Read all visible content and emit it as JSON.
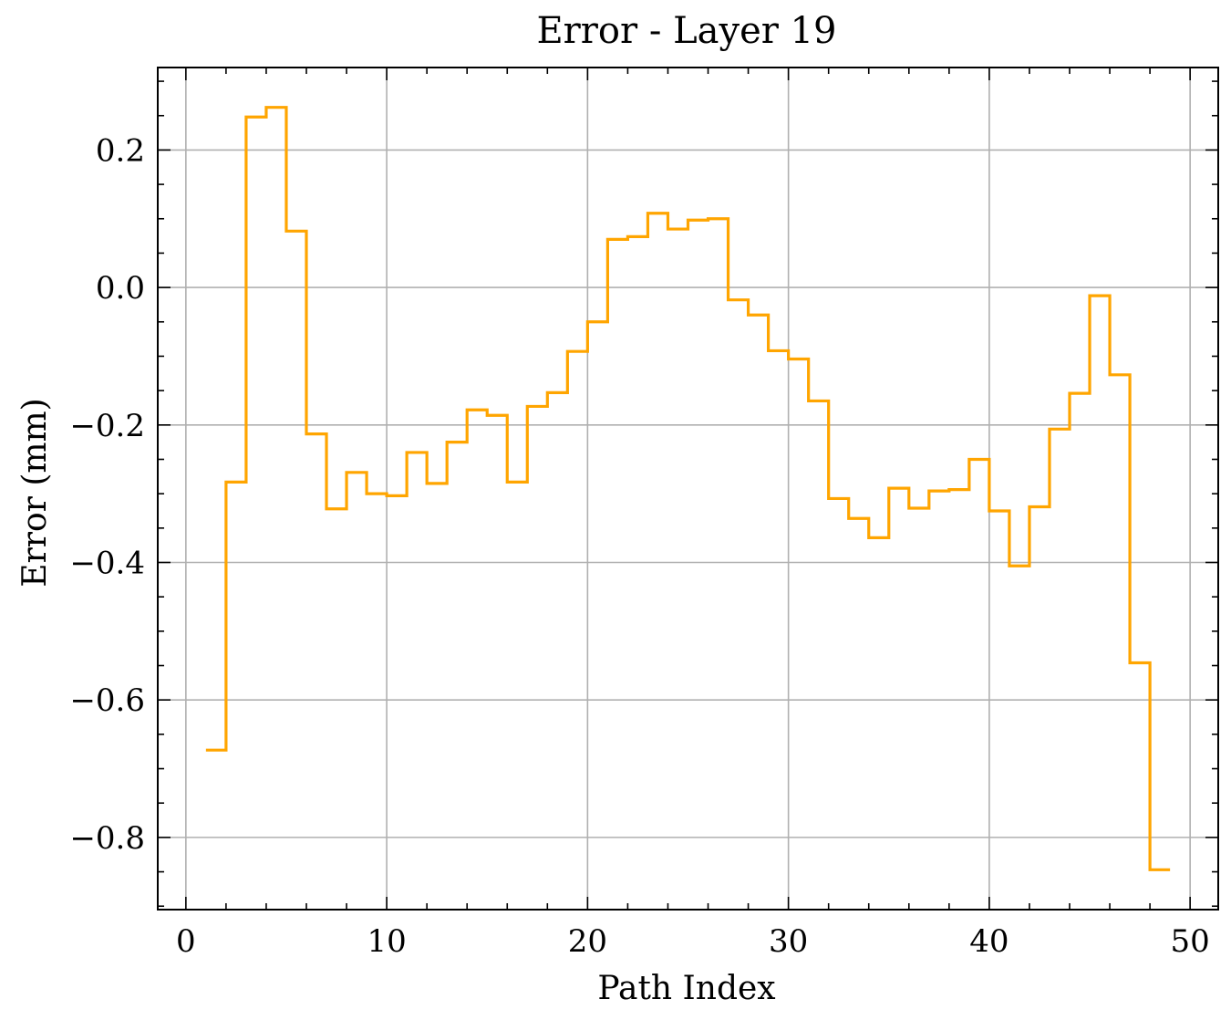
{
  "chart_data": {
    "type": "line",
    "step": "post",
    "title": "Error - Layer 19",
    "xlabel": "Path Index",
    "ylabel": "Error (mm)",
    "xlim": [
      -1.4,
      51.4
    ],
    "ylim": [
      -0.905,
      0.32
    ],
    "xticks": [
      0,
      10,
      20,
      30,
      40,
      50
    ],
    "xtick_labels": [
      "0",
      "10",
      "20",
      "30",
      "40",
      "50"
    ],
    "yticks": [
      0.2,
      0.0,
      -0.2,
      -0.4,
      -0.6,
      -0.8
    ],
    "ytick_labels": [
      "0.2",
      "0.0",
      "−0.2",
      "−0.4",
      "−0.6",
      "−0.8"
    ],
    "grid": true,
    "series": [
      {
        "color": "#FFA500",
        "x": [
          1,
          2,
          3,
          4,
          5,
          6,
          7,
          8,
          9,
          10,
          11,
          12,
          13,
          14,
          15,
          16,
          17,
          18,
          19,
          20,
          21,
          22,
          23,
          24,
          25,
          26,
          27,
          28,
          29,
          30,
          31,
          32,
          33,
          34,
          35,
          36,
          37,
          38,
          39,
          40,
          41,
          42,
          43,
          44,
          45,
          46,
          47,
          48,
          49
        ],
        "y": [
          -0.673,
          -0.283,
          0.248,
          0.262,
          0.082,
          -0.213,
          -0.322,
          -0.269,
          -0.3,
          -0.303,
          -0.24,
          -0.285,
          -0.225,
          -0.178,
          -0.186,
          -0.283,
          -0.173,
          -0.153,
          -0.093,
          -0.05,
          0.07,
          0.074,
          0.108,
          0.085,
          0.098,
          0.1,
          -0.018,
          -0.04,
          -0.092,
          -0.104,
          -0.165,
          -0.307,
          -0.336,
          -0.364,
          -0.292,
          -0.321,
          -0.296,
          -0.294,
          -0.25,
          -0.325,
          -0.405,
          -0.319,
          -0.206,
          -0.154,
          -0.012,
          -0.127,
          -0.546,
          -0.847,
          -0.847
        ]
      }
    ]
  }
}
